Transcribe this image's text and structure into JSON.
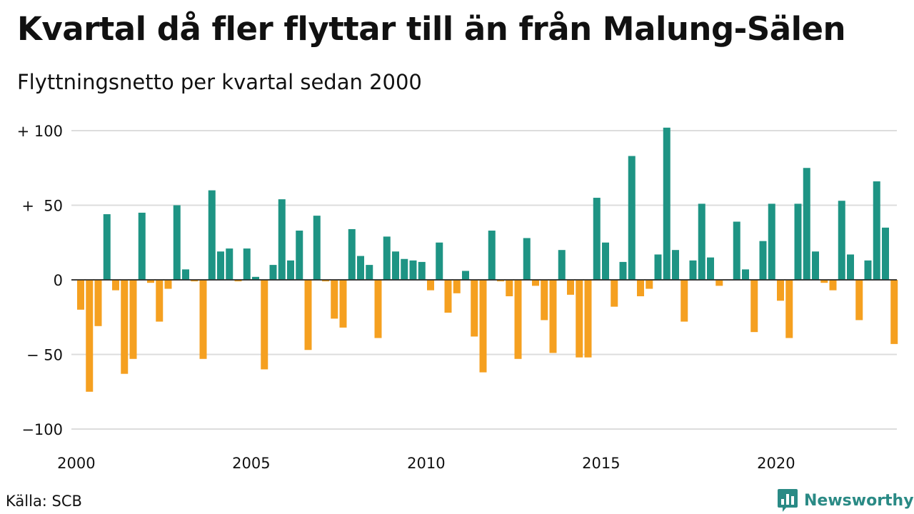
{
  "header": {
    "title": "Kvartal då fler flyttar till än från Malung-Sälen",
    "subtitle": "Flyttningsnetto per kvartal sedan 2000"
  },
  "footer": {
    "source": "Källa: SCB",
    "brand": "Newsworthy"
  },
  "colors": {
    "positive": "#1e9484",
    "negative": "#f5a020",
    "gridline": "#dddddd",
    "brand": "#2a8a85"
  },
  "icons": {
    "brand_logo": "bar-chart-speech-bubble-icon"
  },
  "chart_data": {
    "type": "bar",
    "title": "Kvartal då fler flyttar till än från Malung-Sälen",
    "subtitle": "Flyttningsnetto per kvartal sedan 2000",
    "xlabel": "",
    "ylabel": "",
    "ylim": [
      -100,
      100
    ],
    "grid": true,
    "legend": "none",
    "y_ticks": [
      100,
      50,
      0,
      -50,
      -100
    ],
    "y_tick_labels": [
      "+ 100",
      "+  50",
      "0",
      "− 50",
      "−100"
    ],
    "x_ticks": [
      2000,
      2005,
      2010,
      2015,
      2020
    ],
    "x_tick_labels": [
      "2000",
      "2005",
      "2010",
      "2015",
      "2020"
    ],
    "period": {
      "start": "2000-Q1",
      "end": "2023-Q3",
      "frequency": "quarter"
    },
    "categories": [
      "2000-Q1",
      "2000-Q2",
      "2000-Q3",
      "2000-Q4",
      "2001-Q1",
      "2001-Q2",
      "2001-Q3",
      "2001-Q4",
      "2002-Q1",
      "2002-Q2",
      "2002-Q3",
      "2002-Q4",
      "2003-Q1",
      "2003-Q2",
      "2003-Q3",
      "2003-Q4",
      "2004-Q1",
      "2004-Q2",
      "2004-Q3",
      "2004-Q4",
      "2005-Q1",
      "2005-Q2",
      "2005-Q3",
      "2005-Q4",
      "2006-Q1",
      "2006-Q2",
      "2006-Q3",
      "2006-Q4",
      "2007-Q1",
      "2007-Q2",
      "2007-Q3",
      "2007-Q4",
      "2008-Q1",
      "2008-Q2",
      "2008-Q3",
      "2008-Q4",
      "2009-Q1",
      "2009-Q2",
      "2009-Q3",
      "2009-Q4",
      "2010-Q1",
      "2010-Q2",
      "2010-Q3",
      "2010-Q4",
      "2011-Q1",
      "2011-Q2",
      "2011-Q3",
      "2011-Q4",
      "2012-Q1",
      "2012-Q2",
      "2012-Q3",
      "2012-Q4",
      "2013-Q1",
      "2013-Q2",
      "2013-Q3",
      "2013-Q4",
      "2014-Q1",
      "2014-Q2",
      "2014-Q3",
      "2014-Q4",
      "2015-Q1",
      "2015-Q2",
      "2015-Q3",
      "2015-Q4",
      "2016-Q1",
      "2016-Q2",
      "2016-Q3",
      "2016-Q4",
      "2017-Q1",
      "2017-Q2",
      "2017-Q3",
      "2017-Q4",
      "2018-Q1",
      "2018-Q2",
      "2018-Q3",
      "2018-Q4",
      "2019-Q1",
      "2019-Q2",
      "2019-Q3",
      "2019-Q4",
      "2020-Q1",
      "2020-Q2",
      "2020-Q3",
      "2020-Q4",
      "2021-Q1",
      "2021-Q2",
      "2021-Q3",
      "2021-Q4",
      "2022-Q1",
      "2022-Q2",
      "2022-Q3",
      "2022-Q4",
      "2023-Q1",
      "2023-Q2",
      "2023-Q3"
    ],
    "values": [
      -20,
      -75,
      -31,
      44,
      -7,
      -63,
      -53,
      45,
      -2,
      -28,
      -6,
      50,
      7,
      -1,
      -53,
      60,
      19,
      21,
      -1,
      21,
      2,
      -60,
      10,
      54,
      13,
      33,
      -47,
      43,
      -1,
      -26,
      -32,
      34,
      16,
      10,
      -39,
      29,
      19,
      14,
      13,
      12,
      -7,
      25,
      -22,
      -9,
      6,
      -38,
      -62,
      33,
      -1,
      -11,
      -53,
      28,
      -4,
      -27,
      -49,
      20,
      -10,
      -52,
      -52,
      55,
      25,
      -18,
      12,
      83,
      -11,
      -6,
      17,
      102,
      20,
      -28,
      13,
      51,
      15,
      -4,
      0,
      39,
      7,
      -35,
      26,
      51,
      -14,
      -39,
      51,
      75,
      19,
      -2,
      -7,
      53,
      17,
      -27,
      13,
      66,
      35,
      -43,
      0
    ]
  }
}
